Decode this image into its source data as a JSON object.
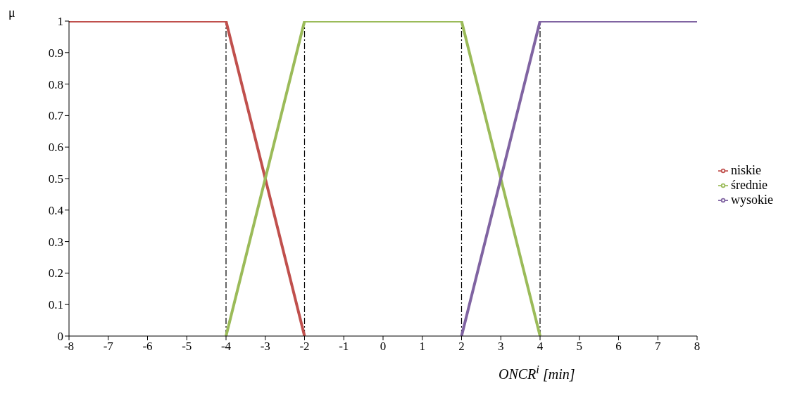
{
  "chart_data": {
    "type": "line",
    "xlabel": "ONCR$^{i}$ [min]",
    "ylabel": "μ",
    "series": [
      {
        "name": "niskie",
        "color": "#c0504d",
        "x": [
          -8,
          -4,
          -2
        ],
        "values": [
          1,
          1,
          0
        ]
      },
      {
        "name": "średnie",
        "color": "#9bbb59",
        "x": [
          -4,
          -2,
          2,
          4
        ],
        "values": [
          0,
          1,
          1,
          0
        ]
      },
      {
        "name": "wysokie",
        "color": "#8064a2",
        "x": [
          2,
          4,
          8
        ],
        "values": [
          0,
          1,
          1
        ]
      }
    ],
    "xlim": [
      -8,
      8
    ],
    "xticks": [
      -8,
      -7,
      -6,
      -5,
      -4,
      -3,
      -2,
      -1,
      0,
      1,
      2,
      3,
      4,
      5,
      6,
      7,
      8
    ],
    "ylim": [
      0,
      1
    ],
    "yticks": [
      0,
      0.1,
      0.2,
      0.3,
      0.4,
      0.5,
      0.6,
      0.7,
      0.8,
      0.9,
      1
    ],
    "ref_lines": [
      {
        "axis": "x",
        "value": -4,
        "color": "#000000",
        "line_style": "dashed"
      },
      {
        "axis": "x",
        "value": -2,
        "color": "#000000",
        "line_style": "dashed"
      },
      {
        "axis": "x",
        "value": 2,
        "color": "#000000",
        "line_style": "dashed"
      },
      {
        "axis": "x",
        "value": 4,
        "color": "#000000",
        "line_style": "dashed"
      }
    ],
    "grid": false,
    "legend": "right",
    "marker": "none",
    "line_style": "solid"
  }
}
